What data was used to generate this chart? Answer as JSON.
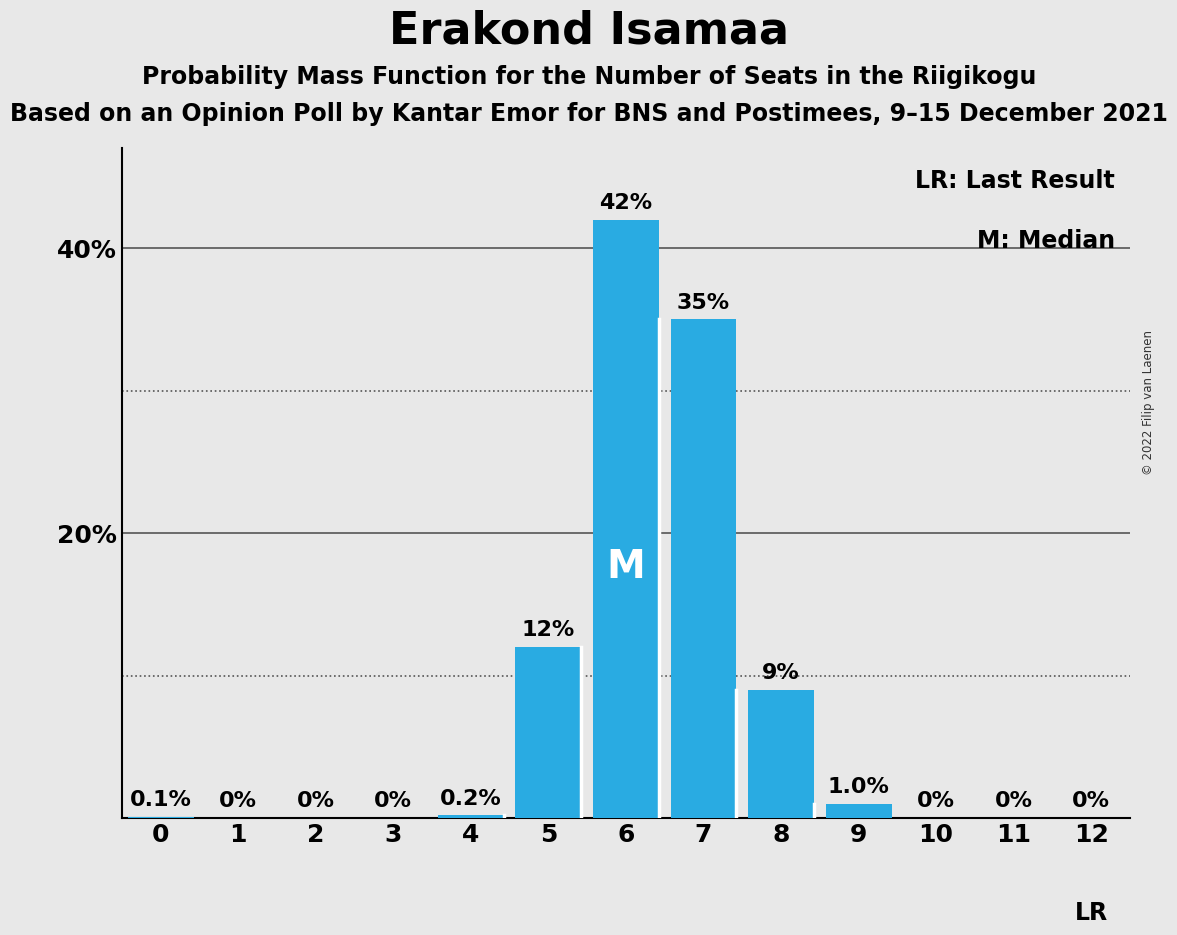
{
  "title": "Erakond Isamaa",
  "subtitle1": "Probability Mass Function for the Number of Seats in the Riigikogu",
  "subtitle2": "Based on an Opinion Poll by Kantar Emor for BNS and Postimees, 9–15 December 2021",
  "copyright": "© 2022 Filip van Laenen",
  "seats": [
    0,
    1,
    2,
    3,
    4,
    5,
    6,
    7,
    8,
    9,
    10,
    11,
    12
  ],
  "probabilities": [
    0.001,
    0.0,
    0.0,
    0.0,
    0.002,
    0.12,
    0.42,
    0.35,
    0.09,
    0.01,
    0.0,
    0.0,
    0.0
  ],
  "labels": [
    "0.1%",
    "0%",
    "0%",
    "0%",
    "0.2%",
    "12%",
    "42%",
    "35%",
    "9%",
    "1.0%",
    "0%",
    "0%",
    "0%"
  ],
  "bar_color": "#29ABE2",
  "median_seat": 6,
  "median_label": "M",
  "lr_seat": 12,
  "lr_label": "LR",
  "legend_lr": "LR: Last Result",
  "legend_m": "M: Median",
  "background_color": "#E8E8E8",
  "plot_background_color": "#E8E8E8",
  "ylim": [
    0,
    0.47
  ],
  "solid_gridlines": [
    0.2,
    0.4
  ],
  "dotted_gridlines": [
    0.1,
    0.3
  ],
  "ytick_positions": [
    0.2,
    0.4
  ],
  "ytick_labels": [
    "20%",
    "40%"
  ],
  "title_fontsize": 32,
  "subtitle_fontsize": 17,
  "bar_label_fontsize": 16,
  "axis_label_fontsize": 18,
  "legend_fontsize": 17,
  "median_fontsize": 28,
  "lr_fontsize": 17
}
